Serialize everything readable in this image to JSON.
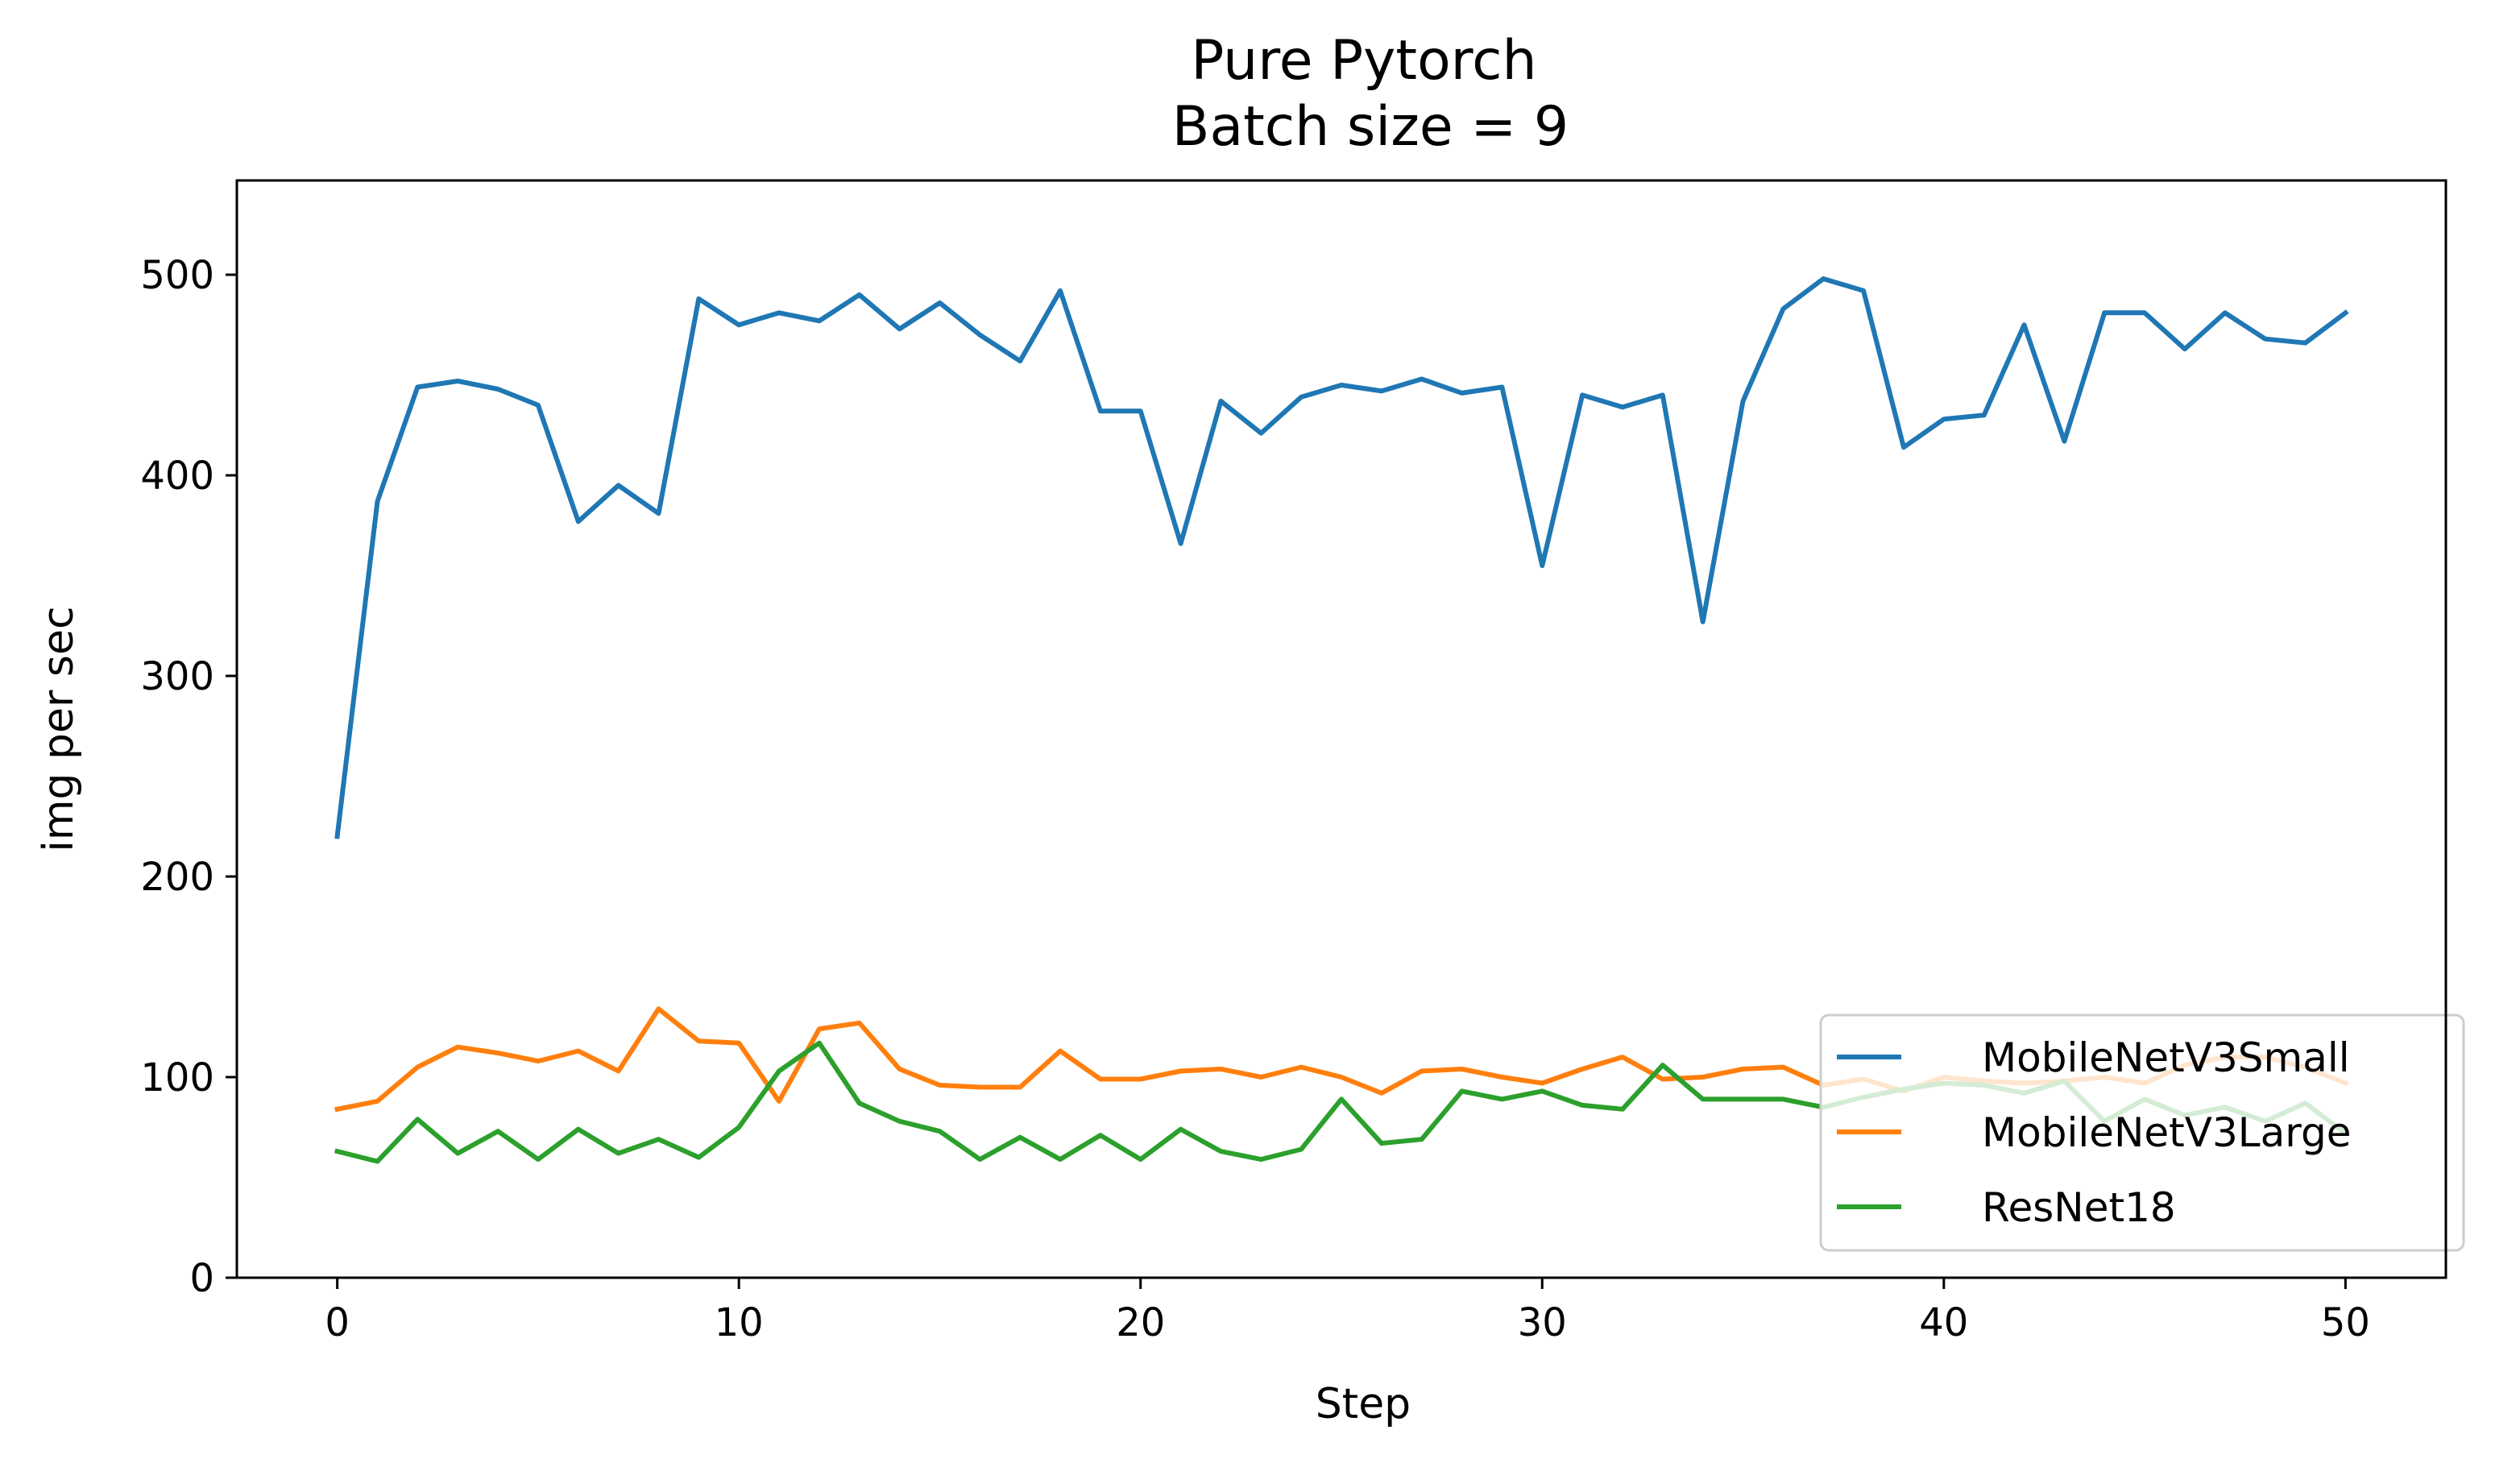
{
  "chart_data": {
    "type": "line",
    "title": "Pure Pytorch",
    "subtitle": "Batch size = 9",
    "xlabel": "Step",
    "ylabel": "img per sec",
    "xlim": [
      -2.5,
      52.5
    ],
    "ylim": [
      0,
      547
    ],
    "xticks": [
      0,
      10,
      20,
      30,
      40,
      50
    ],
    "yticks": [
      0,
      100,
      200,
      300,
      400,
      500
    ],
    "grid": false,
    "legend_position": "lower-right",
    "x": [
      0,
      1,
      2,
      3,
      4,
      5,
      6,
      7,
      8,
      9,
      10,
      11,
      12,
      13,
      14,
      15,
      16,
      17,
      18,
      19,
      20,
      21,
      22,
      23,
      24,
      25,
      26,
      27,
      28,
      29,
      30,
      31,
      32,
      33,
      34,
      35,
      36,
      37,
      38,
      39,
      40,
      41,
      42,
      43,
      44,
      45,
      46,
      47,
      48,
      49,
      50
    ],
    "series": [
      {
        "name": "MobileNetV3Small",
        "color": "#1f77b4",
        "values": [
          220,
          387,
          444,
          447,
          443,
          435,
          377,
          395,
          381,
          488,
          475,
          481,
          477,
          490,
          473,
          486,
          470,
          457,
          492,
          432,
          432,
          366,
          437,
          421,
          439,
          445,
          442,
          448,
          441,
          444,
          355,
          440,
          434,
          440,
          327,
          437,
          483,
          498,
          492,
          414,
          428,
          430,
          475,
          417,
          481,
          481,
          463,
          481,
          468,
          466,
          481
        ]
      },
      {
        "name": "MobileNetV3Large",
        "color": "#ff7f0e",
        "values": [
          84,
          88,
          105,
          115,
          112,
          108,
          113,
          103,
          134,
          118,
          117,
          88,
          124,
          127,
          104,
          96,
          95,
          95,
          113,
          99,
          99,
          103,
          104,
          100,
          105,
          100,
          92,
          103,
          104,
          100,
          97,
          104,
          110,
          99,
          100,
          104,
          105,
          96,
          99,
          93,
          100,
          98,
          97,
          98,
          100,
          97,
          106,
          110,
          110,
          105,
          97
        ]
      },
      {
        "name": "ResNet18",
        "color": "#2ca02c",
        "values": [
          63,
          58,
          79,
          62,
          73,
          59,
          74,
          62,
          69,
          60,
          75,
          103,
          117,
          87,
          78,
          73,
          59,
          70,
          59,
          71,
          59,
          74,
          63,
          59,
          64,
          89,
          67,
          69,
          93,
          89,
          93,
          86,
          84,
          106,
          89,
          89,
          89,
          85,
          90,
          94,
          97,
          96,
          92,
          98,
          78,
          89,
          81,
          85,
          78,
          87,
          72
        ]
      }
    ]
  }
}
